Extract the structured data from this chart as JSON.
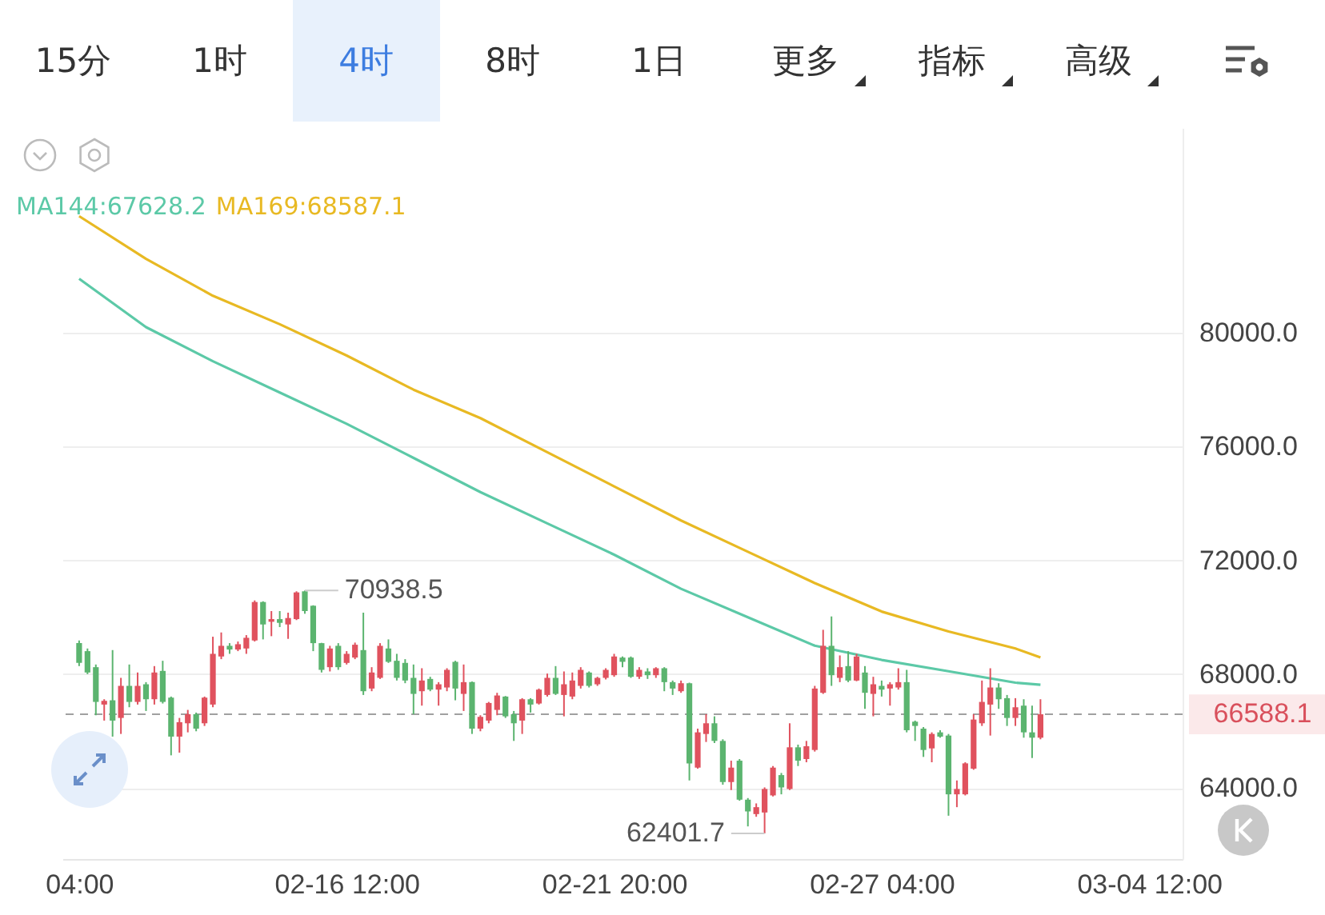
{
  "chart_data": {
    "type": "candlestick",
    "annotations": [
      "15分",
      "1时",
      "4时",
      "8时",
      "1日",
      "更多",
      "指标",
      "高级",
      {
        "text": "70938.5",
        "x": "--02-15T16:00",
        "y": 70938.5
      },
      {
        "text": "62401.7",
        "x": "--02-24T20:00",
        "y": 62401.7
      }
    ],
    "xlim": [
      "--02-10T20:00",
      "--03-05T04:00"
    ],
    "xticks": [
      {
        "value": "--02-11T04:00",
        "label": "04:00"
      },
      {
        "value": "--02-16T12:00",
        "label": "02-16 12:00"
      },
      {
        "value": "--02-21T20:00",
        "label": "02-21 20:00"
      },
      {
        "value": "--02-27T04:00",
        "label": "02-27 04:00"
      },
      {
        "value": "--03-04T12:00",
        "label": "03-04 12:00"
      }
    ],
    "ylim": [
      61500,
      87200
    ],
    "yticks": [
      {
        "value": 64000,
        "label": "64000.0"
      },
      {
        "value": 68000,
        "label": "68000.0"
      },
      {
        "value": 72000,
        "label": "72000.0"
      },
      {
        "value": 76000,
        "label": "76000.0"
      },
      {
        "value": 80000,
        "label": "80000.0"
      }
    ],
    "grid": "y",
    "legend": "top left",
    "ref_lines": [
      {
        "axis": "y",
        "value": 66588.1,
        "label": "66588.1",
        "color": "#a0a0a0",
        "line_style": "dashed"
      }
    ],
    "series": [
      {
        "type": "line",
        "name": "MA144:67628.2",
        "color": "#5cc9a7",
        "x": [
          "--02-11T04:00",
          "--02-12T12:00",
          "--02-13T20:00",
          "--02-15T04:00",
          "--02-16T12:00",
          "--02-17T20:00",
          "--02-19T04:00",
          "--02-20T12:00",
          "--02-21T20:00",
          "--02-23T04:00",
          "--02-24T12:00",
          "--02-25T20:00",
          "--02-27T04:00",
          "--02-28T12:00",
          "--03-01T20:00",
          "--03-02T08:00"
        ],
        "values": [
          81900,
          80200,
          79000,
          77900,
          76800,
          75600,
          74400,
          73300,
          72200,
          71000,
          70000,
          69000,
          68500,
          68100,
          67700,
          67628.2
        ]
      },
      {
        "type": "line",
        "name": "MA169:68587.1",
        "color": "#e8b923",
        "x": [
          "--02-11T04:00",
          "--02-12T12:00",
          "--02-13T20:00",
          "--02-15T04:00",
          "--02-16T12:00",
          "--02-17T20:00",
          "--02-19T04:00",
          "--02-20T12:00",
          "--02-21T20:00",
          "--02-23T04:00",
          "--02-24T12:00",
          "--02-25T20:00",
          "--02-27T04:00",
          "--02-28T12:00",
          "--03-01T20:00",
          "--03-02T08:00"
        ],
        "values": [
          84100,
          82600,
          81300,
          80300,
          79200,
          78000,
          77000,
          75800,
          74600,
          73400,
          72300,
          71200,
          70200,
          69500,
          68900,
          68587.1
        ]
      },
      {
        "x": [
          "--02-11T04:00",
          "--02-11T08:00",
          "--02-11T12:00",
          "--02-11T16:00",
          "--02-11T20:00",
          "--02-12T00:00",
          "--02-12T04:00",
          "--02-12T08:00",
          "--02-12T12:00",
          "--02-12T16:00",
          "--02-12T20:00",
          "--02-13T00:00",
          "--02-13T04:00",
          "--02-13T08:00",
          "--02-13T12:00",
          "--02-13T16:00",
          "--02-13T20:00",
          "--02-14T00:00",
          "--02-14T04:00",
          "--02-14T08:00",
          "--02-14T12:00",
          "--02-14T16:00",
          "--02-14T20:00",
          "--02-15T00:00",
          "--02-15T04:00",
          "--02-15T08:00",
          "--02-15T12:00",
          "--02-15T16:00",
          "--02-15T20:00",
          "--02-16T00:00",
          "--02-16T04:00",
          "--02-16T08:00",
          "--02-16T12:00",
          "--02-16T16:00",
          "--02-16T20:00",
          "--02-17T00:00",
          "--02-17T04:00",
          "--02-17T08:00",
          "--02-17T12:00",
          "--02-17T16:00",
          "--02-17T20:00",
          "--02-18T00:00",
          "--02-18T04:00",
          "--02-18T08:00",
          "--02-18T12:00",
          "--02-18T16:00",
          "--02-18T20:00",
          "--02-19T00:00",
          "--02-19T04:00",
          "--02-19T08:00",
          "--02-19T12:00",
          "--02-19T16:00",
          "--02-19T20:00",
          "--02-20T00:00",
          "--02-20T04:00",
          "--02-20T08:00",
          "--02-20T12:00",
          "--02-20T16:00",
          "--02-20T20:00",
          "--02-21T00:00",
          "--02-21T04:00",
          "--02-21T08:00",
          "--02-21T12:00",
          "--02-21T16:00",
          "--02-21T20:00",
          "--02-22T00:00",
          "--02-22T04:00",
          "--02-22T08:00",
          "--02-22T12:00",
          "--02-22T16:00",
          "--02-22T20:00",
          "--02-23T00:00",
          "--02-23T04:00",
          "--02-23T08:00",
          "--02-23T12:00",
          "--02-23T16:00",
          "--02-23T20:00",
          "--02-24T00:00",
          "--02-24T04:00",
          "--02-24T08:00",
          "--02-24T12:00",
          "--02-24T16:00",
          "--02-24T20:00",
          "--02-25T00:00",
          "--02-25T04:00",
          "--02-25T08:00",
          "--02-25T12:00",
          "--02-25T16:00",
          "--02-25T20:00",
          "--02-26T00:00",
          "--02-26T04:00",
          "--02-26T08:00",
          "--02-26T12:00",
          "--02-26T16:00",
          "--02-26T20:00",
          "--02-27T00:00",
          "--02-27T04:00",
          "--02-27T08:00",
          "--02-27T12:00",
          "--02-27T16:00",
          "--02-27T20:00",
          "--02-28T00:00",
          "--02-28T04:00",
          "--02-28T08:00",
          "--02-28T12:00",
          "--02-28T16:00",
          "--02-28T20:00",
          "--03-01T00:00",
          "--03-01T04:00",
          "--03-01T08:00",
          "--03-01T12:00",
          "--03-01T16:00",
          "--03-01T20:00",
          "--03-02T00:00",
          "--03-02T04:00",
          "--03-02T08:00"
        ],
        "ohlc": [
          [
            69089,
            69183,
            68282,
            68394
          ],
          [
            68808,
            68901,
            68000,
            68057
          ],
          [
            68244,
            68338,
            66554,
            67023
          ],
          [
            66930,
            67117,
            66366,
            67061
          ],
          [
            67080,
            68845,
            65803,
            66366
          ],
          [
            66460,
            67869,
            65897,
            67587
          ],
          [
            67587,
            68338,
            66836,
            67023
          ],
          [
            67023,
            68057,
            66930,
            67587
          ],
          [
            67643,
            67718,
            66704,
            67117
          ],
          [
            67117,
            68282,
            66930,
            68057
          ],
          [
            68113,
            68469,
            66967,
            67023
          ],
          [
            67174,
            67211,
            65145,
            65803
          ],
          [
            65803,
            66460,
            65239,
            66310
          ],
          [
            66272,
            66742,
            65953,
            66591
          ],
          [
            66591,
            66648,
            65991,
            66084
          ],
          [
            66272,
            67211,
            66178,
            67174
          ],
          [
            66930,
            69315,
            66836,
            68713
          ],
          [
            68620,
            69465,
            68526,
            68995
          ],
          [
            68995,
            69089,
            68713,
            68864
          ],
          [
            68864,
            69146,
            68808,
            69051
          ],
          [
            68901,
            69371,
            68713,
            69277
          ],
          [
            69183,
            70591,
            69146,
            70535
          ],
          [
            70535,
            70560,
            69221,
            69746
          ],
          [
            69840,
            70216,
            69334,
            69934
          ],
          [
            69934,
            70216,
            69653,
            69803
          ],
          [
            69746,
            70160,
            69240,
            69972
          ],
          [
            69934,
            70911,
            69900,
            70873
          ],
          [
            70911,
            70938.5,
            70122,
            70216
          ],
          [
            70404,
            70420,
            68808,
            69089
          ],
          [
            69089,
            69100,
            68057,
            68150
          ],
          [
            68244,
            68995,
            68094,
            68901
          ],
          [
            68995,
            69089,
            68150,
            68244
          ],
          [
            68394,
            68808,
            68338,
            68713
          ],
          [
            68582,
            69108,
            68526,
            69033
          ],
          [
            68845,
            70160,
            67267,
            67399
          ],
          [
            67493,
            68244,
            67399,
            68057
          ],
          [
            67869,
            69089,
            67831,
            68995
          ],
          [
            68901,
            69221,
            68394,
            68432
          ],
          [
            68469,
            68713,
            67775,
            67869
          ],
          [
            68394,
            68526,
            67681,
            67775
          ],
          [
            67869,
            68338,
            66591,
            67305
          ],
          [
            67399,
            68207,
            66892,
            67775
          ],
          [
            67831,
            67906,
            67399,
            67455
          ],
          [
            67455,
            67718,
            66892,
            67643
          ],
          [
            67530,
            68207,
            67399,
            68150
          ],
          [
            68432,
            68469,
            67080,
            67493
          ],
          [
            67305,
            68338,
            66704,
            67718
          ],
          [
            67718,
            67740,
            65897,
            66084
          ],
          [
            66084,
            66554,
            65991,
            66498
          ],
          [
            66366,
            67023,
            66272,
            66986
          ],
          [
            66742,
            67343,
            66554,
            67249
          ],
          [
            67211,
            67230,
            66460,
            66516
          ],
          [
            66591,
            66704,
            65652,
            66272
          ],
          [
            66366,
            67155,
            65897,
            67117
          ],
          [
            67117,
            67155,
            66648,
            66930
          ],
          [
            66967,
            67493,
            66930,
            67455
          ],
          [
            67267,
            68019,
            67211,
            67869
          ],
          [
            67869,
            68282,
            67267,
            67305
          ],
          [
            67267,
            68094,
            66516,
            67643
          ],
          [
            67211,
            68057,
            67117,
            67775
          ],
          [
            67587,
            68244,
            67493,
            68150
          ],
          [
            68056,
            68094,
            67530,
            67587
          ],
          [
            67643,
            67906,
            67587,
            67868
          ],
          [
            67868,
            68207,
            67812,
            68150
          ],
          [
            67962,
            68713,
            67906,
            68620
          ],
          [
            68582,
            68620,
            68244,
            68432
          ],
          [
            68582,
            68620,
            67868,
            67906
          ],
          [
            67906,
            68244,
            67831,
            68150
          ],
          [
            68094,
            68207,
            67831,
            67962
          ],
          [
            67962,
            68244,
            67868,
            68207
          ],
          [
            68207,
            68244,
            67399,
            67718
          ],
          [
            67718,
            67774,
            67267,
            67493
          ],
          [
            67399,
            67774,
            67343,
            67680
          ],
          [
            67680,
            67700,
            64262,
            64863
          ],
          [
            64713,
            66084,
            64676,
            65953
          ],
          [
            65896,
            66591,
            65615,
            66272
          ],
          [
            66272,
            66516,
            65577,
            65652
          ],
          [
            65652,
            65709,
            64112,
            64206
          ],
          [
            64206,
            64957,
            63924,
            64713
          ],
          [
            64957,
            65014,
            63549,
            63586
          ],
          [
            63586,
            63643,
            62647,
            63173
          ],
          [
            63079,
            63455,
            62985,
            63323
          ],
          [
            63135,
            64018,
            62401.7,
            63962
          ],
          [
            63736,
            64769,
            63699,
            64713
          ],
          [
            64450,
            64525,
            63774,
            64018
          ],
          [
            63962,
            66272,
            63924,
            65427
          ],
          [
            65427,
            65521,
            64769,
            64957
          ],
          [
            65014,
            65652,
            64901,
            65464
          ],
          [
            65333,
            67587,
            65277,
            67493
          ],
          [
            67343,
            69558,
            67305,
            68995
          ],
          [
            68995,
            70028,
            67587,
            67962
          ],
          [
            67868,
            68657,
            67718,
            68244
          ],
          [
            68282,
            68807,
            67718,
            67774
          ],
          [
            67774,
            68713,
            67750,
            68620
          ],
          [
            68056,
            68282,
            66779,
            67343
          ],
          [
            67305,
            67906,
            66516,
            67643
          ],
          [
            67587,
            67774,
            67211,
            67455
          ],
          [
            67493,
            67718,
            66892,
            67643
          ],
          [
            67530,
            68206,
            67455,
            67718
          ],
          [
            67718,
            68150,
            65953,
            66028
          ],
          [
            66328,
            66366,
            65652,
            66178
          ],
          [
            66084,
            66140,
            65089,
            65333
          ],
          [
            65389,
            65953,
            64901,
            65896
          ],
          [
            65953,
            66028,
            65765,
            65802
          ],
          [
            65840,
            65896,
            63022,
            63774
          ],
          [
            63774,
            64262,
            63323,
            63962
          ],
          [
            63774,
            64901,
            63736,
            64863
          ],
          [
            64676,
            66591,
            64638,
            66403
          ],
          [
            66272,
            67774,
            66178,
            67023
          ],
          [
            66929,
            68206,
            65840,
            67530
          ],
          [
            67530,
            67680,
            66779,
            67117
          ],
          [
            67155,
            67267,
            66178,
            66459
          ],
          [
            66459,
            67155,
            66178,
            66835
          ],
          [
            66892,
            67117,
            65765,
            65953
          ],
          [
            65953,
            66892,
            65051,
            65765
          ],
          [
            65765,
            67117,
            65709,
            66588.1
          ]
        ],
        "colors": [
          "#5bb46f",
          "#5bb46f",
          "#5bb46f",
          "#e0525e",
          "#5bb46f",
          "#e0525e",
          "#5bb46f",
          "#e0525e",
          "#5bb46f",
          "#e0525e",
          "#5bb46f",
          "#5bb46f",
          "#e0525e",
          "#e0525e",
          "#5bb46f",
          "#e0525e",
          "#e0525e",
          "#e0525e",
          "#5bb46f",
          "#e0525e",
          "#e0525e",
          "#e0525e",
          "#5bb46f",
          "#e0525e",
          "#5bb46f",
          "#e0525e",
          "#e0525e",
          "#5bb46f",
          "#5bb46f",
          "#5bb46f",
          "#e0525e",
          "#5bb46f",
          "#e0525e",
          "#e0525e",
          "#5bb46f",
          "#e0525e",
          "#e0525e",
          "#5bb46f",
          "#5bb46f",
          "#5bb46f",
          "#5bb46f",
          "#e0525e",
          "#5bb46f",
          "#e0525e",
          "#e0525e",
          "#5bb46f",
          "#e0525e",
          "#5bb46f",
          "#e0525e",
          "#e0525e",
          "#e0525e",
          "#5bb46f",
          "#5bb46f",
          "#e0525e",
          "#5bb46f",
          "#e0525e",
          "#e0525e",
          "#5bb46f",
          "#e0525e",
          "#e0525e",
          "#e0525e",
          "#5bb46f",
          "#e0525e",
          "#e0525e",
          "#e0525e",
          "#5bb46f",
          "#5bb46f",
          "#e0525e",
          "#5bb46f",
          "#e0525e",
          "#5bb46f",
          "#5bb46f",
          "#e0525e",
          "#5bb46f",
          "#e0525e",
          "#e0525e",
          "#5bb46f",
          "#5bb46f",
          "#e0525e",
          "#5bb46f",
          "#5bb46f",
          "#e0525e",
          "#e0525e",
          "#e0525e",
          "#5bb46f",
          "#e0525e",
          "#5bb46f",
          "#e0525e",
          "#e0525e",
          "#e0525e",
          "#5bb46f",
          "#e0525e",
          "#5bb46f",
          "#e0525e",
          "#5bb46f",
          "#e0525e",
          "#5bb46f",
          "#e0525e",
          "#e0525e",
          "#5bb46f",
          "#5bb46f",
          "#5bb46f",
          "#e0525e",
          "#5bb46f",
          "#5bb46f",
          "#e0525e",
          "#e0525e",
          "#e0525e",
          "#e0525e",
          "#e0525e",
          "#5bb46f",
          "#5bb46f",
          "#e0525e",
          "#5bb46f",
          "#5bb46f",
          "#e0525e"
        ]
      }
    ]
  }
}
